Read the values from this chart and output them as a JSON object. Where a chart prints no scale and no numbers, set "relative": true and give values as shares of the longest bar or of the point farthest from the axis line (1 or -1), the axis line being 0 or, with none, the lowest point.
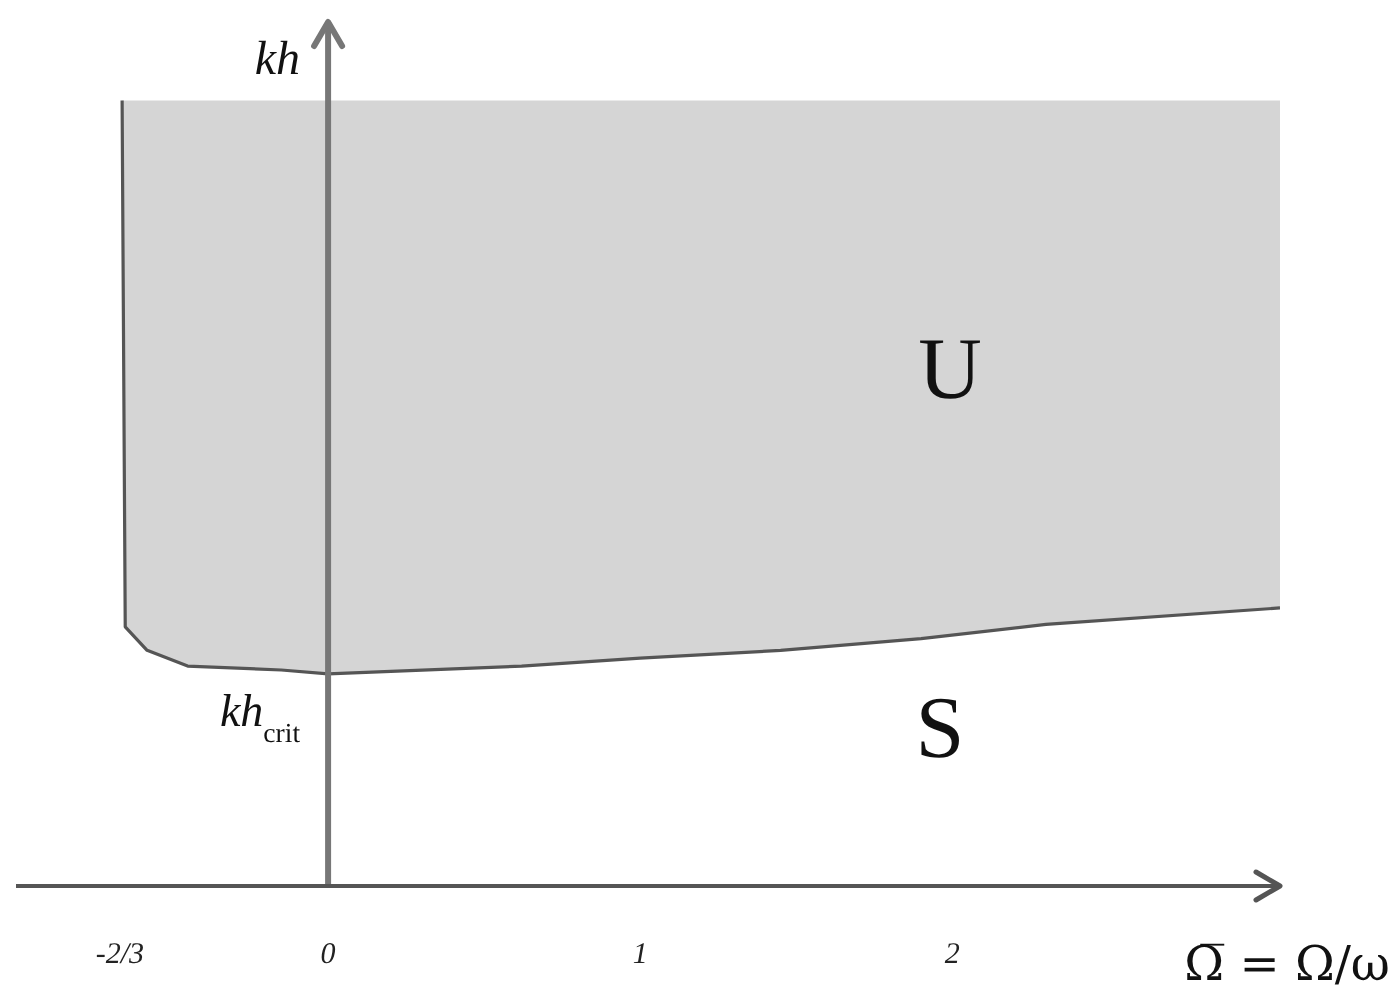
{
  "chart_data": {
    "type": "line",
    "relative": true,
    "xlabel": "Ω̅ = Ω/ω",
    "ylabel": "kh",
    "tick_labels": "x",
    "x": [
      -0.66,
      -0.65,
      -0.58,
      -0.45,
      -0.15,
      0,
      0.62,
      1,
      1.45,
      1.9,
      2.3,
      3.05
    ],
    "series": [
      {
        "color": "#555555",
        "values": [
          1,
          0.33,
          0.3,
          0.28,
          0.275,
          0.27,
          0.28,
          0.29,
          0.3,
          0.315,
          0.333,
          0.354
        ],
        "lower": [
          1,
          0.33,
          0.3,
          0.28,
          0.275,
          0.27,
          0.28,
          0.29,
          0.3,
          0.315,
          0.333,
          0.354
        ],
        "upper": [
          1,
          1,
          1,
          1,
          1,
          1,
          1,
          1,
          1,
          1,
          1,
          1
        ]
      }
    ],
    "xlim": [
      -1,
      3.05
    ],
    "xticks": [
      {
        "value": -0.667,
        "label": "-2/3"
      },
      0,
      1,
      2
    ],
    "annotations": [
      {
        "text": "kh$_{crit}$",
        "x": 0,
        "y": 0.27
      },
      "U",
      "S"
    ]
  }
}
